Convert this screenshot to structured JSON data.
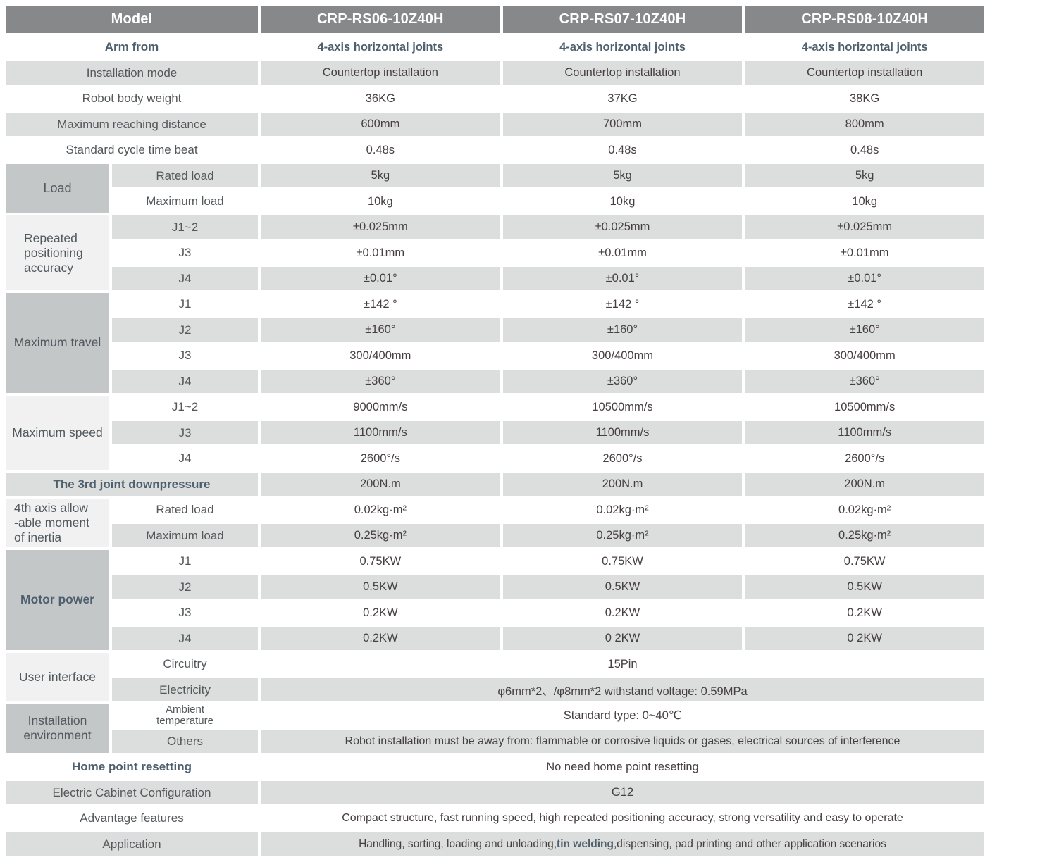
{
  "header": {
    "model_label": "Model",
    "models": [
      "CRP-RS06-10Z40H",
      "CRP-RS07-10Z40H",
      "CRP-RS08-10Z40H"
    ]
  },
  "rows": {
    "arm_from": {
      "label": "Arm from",
      "values": [
        "4-axis horizontal joints",
        "4-axis horizontal joints",
        "4-axis horizontal joints"
      ]
    },
    "installation_mode": {
      "label": "Installation mode",
      "values": [
        "Countertop installation",
        "Countertop installation",
        "Countertop installation"
      ]
    },
    "robot_body_weight": {
      "label": "Robot body weight",
      "values": [
        "36KG",
        "37KG",
        "38KG"
      ]
    },
    "max_reaching_distance": {
      "label": "Maximum reaching distance",
      "values": [
        "600mm",
        "700mm",
        "800mm"
      ]
    },
    "standard_cycle_time": {
      "label": "Standard cycle time beat",
      "values": [
        "0.48s",
        "0.48s",
        "0.48s"
      ]
    },
    "downpressure": {
      "label": "The 3rd joint downpressure",
      "values": [
        "200N.m",
        "200N.m",
        "200N.m"
      ]
    }
  },
  "groups": {
    "load": {
      "label": "Load",
      "rows": [
        {
          "label": "Rated load",
          "values": [
            "5kg",
            "5kg",
            "5kg"
          ]
        },
        {
          "label": "Maximum load",
          "values": [
            "10kg",
            "10kg",
            "10kg"
          ]
        }
      ]
    },
    "accuracy": {
      "label": "Repeated positioning accuracy",
      "rows": [
        {
          "label": "J1~2",
          "values": [
            "±0.025mm",
            "±0.025mm",
            "±0.025mm"
          ]
        },
        {
          "label": "J3",
          "values": [
            "±0.01mm",
            "±0.01mm",
            "±0.01mm"
          ]
        },
        {
          "label": "J4",
          "values": [
            "±0.01°",
            "±0.01°",
            "±0.01°"
          ]
        }
      ]
    },
    "travel": {
      "label": "Maximum travel",
      "rows": [
        {
          "label": "J1",
          "values": [
            "±142 °",
            "±142 °",
            "±142 °"
          ]
        },
        {
          "label": "J2",
          "values": [
            "±160°",
            "±160°",
            "±160°"
          ]
        },
        {
          "label": "J3",
          "values": [
            "300/400mm",
            "300/400mm",
            "300/400mm"
          ]
        },
        {
          "label": "J4",
          "values": [
            "±360°",
            "±360°",
            "±360°"
          ]
        }
      ]
    },
    "speed": {
      "label": "Maximum speed",
      "rows": [
        {
          "label": "J1~2",
          "values": [
            "9000mm/s",
            "10500mm/s",
            "10500mm/s"
          ]
        },
        {
          "label": "J3",
          "values": [
            "1100mm/s",
            "1100mm/s",
            "1100mm/s"
          ]
        },
        {
          "label": "J4",
          "values": [
            "2600°/s",
            "2600°/s",
            "2600°/s"
          ]
        }
      ]
    },
    "inertia": {
      "label": "4th axis allow\n-able moment\nof inertia",
      "rows": [
        {
          "label": "Rated load",
          "values": [
            "0.02kg·m²",
            "0.02kg·m²",
            "0.02kg·m²"
          ]
        },
        {
          "label": "Maximum load",
          "values": [
            "0.25kg·m²",
            "0.25kg·m²",
            "0.25kg·m²"
          ]
        }
      ]
    },
    "motor": {
      "label": "Motor power",
      "rows": [
        {
          "label": "J1",
          "values": [
            "0.75KW",
            "0.75KW",
            "0.75KW"
          ]
        },
        {
          "label": "J2",
          "values": [
            "0.5KW",
            "0.5KW",
            "0.5KW"
          ]
        },
        {
          "label": "J3",
          "values": [
            "0.2KW",
            "0.2KW",
            "0.2KW"
          ]
        },
        {
          "label": "J4",
          "values": [
            "0.2KW",
            "0 2KW",
            "0 2KW"
          ]
        }
      ]
    },
    "user_interface": {
      "label": "User interface",
      "rows": [
        {
          "label": "Circuitry",
          "value": "15Pin"
        },
        {
          "label": "Electricity",
          "value": "φ6mm*2、/φ8mm*2  withstand voltage: 0.59MPa"
        }
      ]
    },
    "environment": {
      "label": "Installation environment",
      "rows": [
        {
          "label": "Ambient\ntemperature",
          "value": "Standard type:  0~40℃"
        },
        {
          "label": "Others",
          "value": "Robot installation must be away from: flammable or corrosive liquids or gases, electrical sources of interference"
        }
      ]
    }
  },
  "footer": {
    "home_point": {
      "label": "Home point resetting",
      "value": "No need home point resetting"
    },
    "cabinet": {
      "label": "Electric Cabinet Configuration",
      "value": "G12"
    },
    "advantage": {
      "label": "Advantage features",
      "value": "Compact structure, fast running speed, high repeated positioning accuracy, strong versatility and easy to operate"
    },
    "application": {
      "label": "Application",
      "pre": "Handling, sorting, loading and unloading,",
      "bold": "tin welding",
      "post": ",dispensing, pad printing and other application scenarios"
    }
  },
  "colors": {
    "header_bg": "#868889",
    "header_text": "#ffffff",
    "row_band": "#dcdedd",
    "group_label_dark": "#c3c7c8",
    "group_label_light": "#f0f1f0",
    "label_text": "#54585b",
    "value_text": "#463f3f",
    "accent_slate": "#4e5f6d"
  }
}
